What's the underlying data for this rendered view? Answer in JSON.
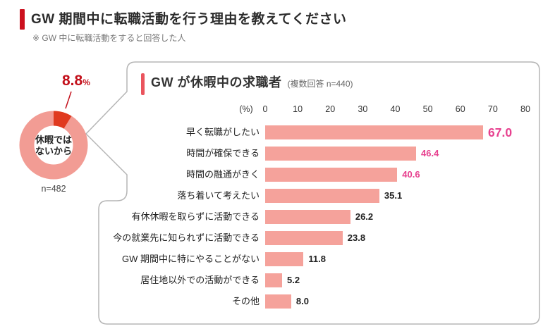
{
  "page": {
    "title": "GW 期間中に転職活動を行う理由を教えてください",
    "subtitle": "※ GW 中に転職活動をすると回答した人",
    "accent_color": "#CC111E"
  },
  "chart_data": [
    {
      "type": "pie",
      "donut": true,
      "value_label": "8.8",
      "value_unit": "%",
      "value_color": "#C3101B",
      "center_label_lines": [
        "休暇では",
        "ないから"
      ],
      "n_label": "n=482",
      "slices": [
        {
          "label": "休暇ではないから",
          "value": 8.8,
          "color": "#E03A1F"
        },
        {
          "label": "GW が休暇中の求職者",
          "value": 91.2,
          "color": "#F29C94"
        }
      ]
    },
    {
      "type": "bar",
      "orientation": "horizontal",
      "title": "GW が休暇中の求職者",
      "subtitle": "(複数回答 n=440)",
      "unit_label": "(%)",
      "ticks": [
        "0",
        "10",
        "20",
        "30",
        "40",
        "50",
        "60",
        "70",
        "80"
      ],
      "xlim": [
        0,
        80
      ],
      "categories": [
        "早く転職がしたい",
        "時間が確保できる",
        "時間の融通がきく",
        "落ち着いて考えたい",
        "有休休暇を取らずに活動できる",
        "今の就業先に知られずに活動できる",
        "GW 期間中に特にやることがない",
        "居住地以外での活動ができる",
        "その他"
      ],
      "values": [
        67.0,
        46.4,
        40.6,
        35.1,
        26.2,
        23.8,
        11.8,
        5.2,
        8.0
      ],
      "value_labels": [
        "67.0",
        "46.4",
        "40.6",
        "35.1",
        "26.2",
        "23.8",
        "11.8",
        "5.2",
        "8.0"
      ],
      "highlight_indices": [
        0,
        1,
        2
      ],
      "big_value_index": 0,
      "bar_color": "#F5A29B",
      "value_color": "#222222",
      "highlight_value_color": "#E7418F",
      "accent_color": "#EA545D",
      "grid": false,
      "legend": false
    }
  ]
}
